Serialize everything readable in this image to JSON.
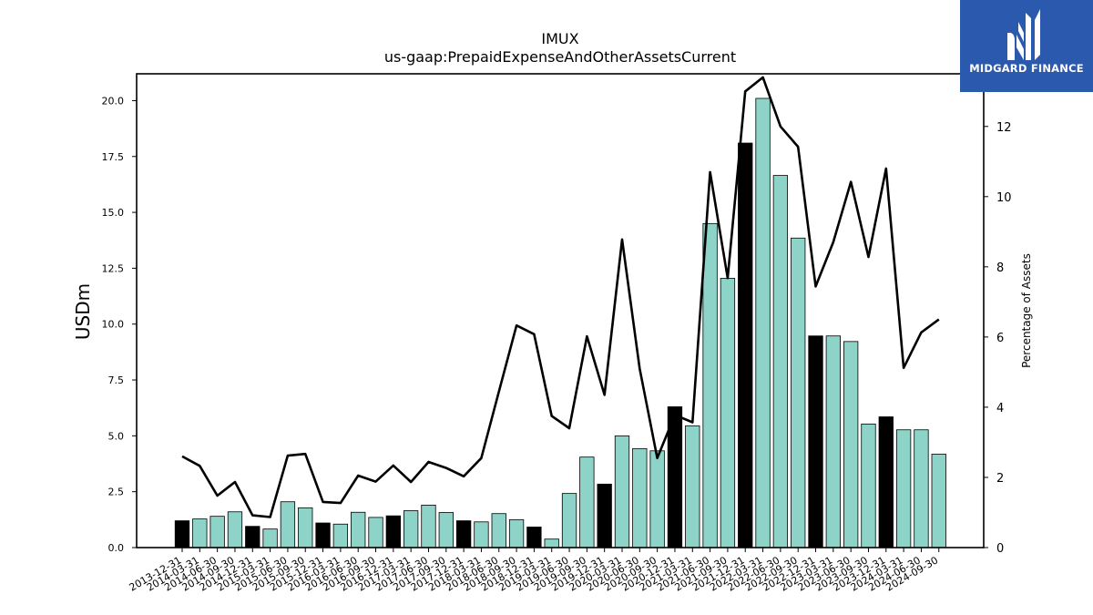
{
  "chart_data": {
    "type": "bar",
    "title": "IMUX",
    "subtitle": "us-gaap:PrepaidExpenseAndOtherAssetsCurrent",
    "ylabel": "USDm",
    "y2label": "Percentage of Assets",
    "ylim": [
      0,
      21.2
    ],
    "y2lim": [
      0,
      13.5
    ],
    "yticks": [
      "0.0",
      "2.5",
      "5.0",
      "7.5",
      "10.0",
      "12.5",
      "15.0",
      "17.5",
      "20.0"
    ],
    "y2ticks": [
      "0",
      "2",
      "4",
      "6",
      "8",
      "10",
      "12"
    ],
    "categories": [
      "2013-12-31",
      "2014-03-31",
      "2014-06-30",
      "2014-09-30",
      "2014-12-31",
      "2015-03-31",
      "2015-06-30",
      "2015-09-30",
      "2015-12-31",
      "2016-03-31",
      "2016-06-30",
      "2016-09-30",
      "2016-12-31",
      "2017-03-31",
      "2017-06-30",
      "2017-09-30",
      "2017-12-31",
      "2018-03-31",
      "2018-06-30",
      "2018-09-30",
      "2018-12-31",
      "2019-03-31",
      "2019-06-30",
      "2019-09-30",
      "2019-12-31",
      "2020-03-31",
      "2020-06-30",
      "2020-09-30",
      "2020-12-31",
      "2021-03-31",
      "2021-06-30",
      "2021-09-30",
      "2021-12-31",
      "2022-03-31",
      "2022-06-30",
      "2022-09-30",
      "2022-12-31",
      "2023-03-31",
      "2023-06-30",
      "2023-09-30",
      "2023-12-31",
      "2024-03-31",
      "2024-06-30",
      "2024-09-30"
    ],
    "series": [
      {
        "kind": "bar",
        "values": [
          1.2,
          1.28,
          1.4,
          1.6,
          0.95,
          0.83,
          2.05,
          1.78,
          1.1,
          1.05,
          1.58,
          1.35,
          1.42,
          1.65,
          1.9,
          1.57,
          1.2,
          1.15,
          1.52,
          1.25,
          0.92,
          0.38,
          2.42,
          4.05,
          2.84,
          5.0,
          4.43,
          4.33,
          6.3,
          5.45,
          14.5,
          12.05,
          18.1,
          20.1,
          16.65,
          13.85,
          9.47,
          9.47,
          9.22,
          5.53,
          5.85,
          5.27,
          5.27,
          4.18
        ],
        "year_end_color": "#000000",
        "quarter_color": "#8dd3c7"
      },
      {
        "kind": "line",
        "axis": "right",
        "color": "#000000",
        "values": [
          2.6,
          2.33,
          1.48,
          1.87,
          0.92,
          0.87,
          2.62,
          2.67,
          1.3,
          1.27,
          2.05,
          1.88,
          2.34,
          1.87,
          2.44,
          2.27,
          2.03,
          2.55,
          4.45,
          6.33,
          6.08,
          3.75,
          3.4,
          6.02,
          4.35,
          8.78,
          5.1,
          2.55,
          3.78,
          3.57,
          10.7,
          7.68,
          13.0,
          13.4,
          12.0,
          11.42,
          7.44,
          8.7,
          10.42,
          8.28,
          10.8,
          5.12,
          6.13,
          6.5
        ]
      }
    ]
  },
  "logo": {
    "text": "MIDGARD FINANCE"
  }
}
